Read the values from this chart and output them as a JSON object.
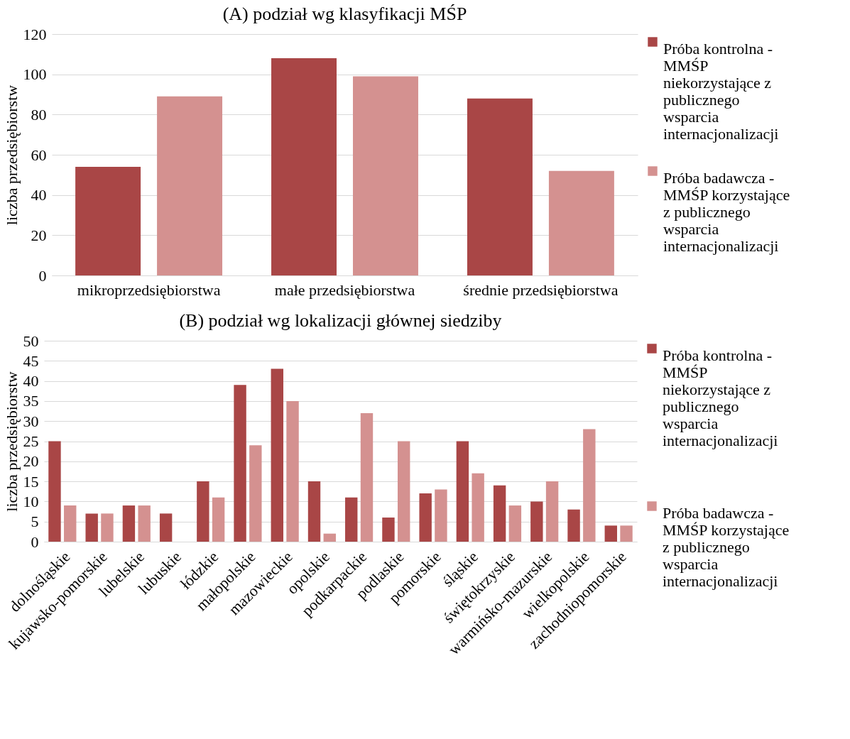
{
  "chart_data": [
    {
      "type": "bar",
      "title": "(A) podział wg klasyfikacji MŚP",
      "ylabel": "liczba przedsiębiorstw",
      "categories": [
        "mikroprzedsiębiorstwa",
        "małe przedsiębiorstwa",
        "średnie przedsiębiorstwa"
      ],
      "series": [
        {
          "name": "Próba kontrolna - MMŚP niekorzystające z publicznego wsparcia internacjonalizacji",
          "color": "#a94646",
          "values": [
            54,
            108,
            88
          ]
        },
        {
          "name": "Próba badawcza - MMŚP korzystające z publicznego wsparcia internacjonalizacji",
          "color": "#d49190",
          "values": [
            89,
            99,
            52
          ]
        }
      ],
      "ylim": [
        0,
        120
      ],
      "yticks": [
        0,
        20,
        40,
        60,
        80,
        100,
        120
      ],
      "grid": "y",
      "legend": "right"
    },
    {
      "type": "bar",
      "title": "(B) podział wg lokalizacji głównej siedziby",
      "ylabel": "liczba przedsiębiorstw",
      "categories": [
        "dolnośląskie",
        "kujawsko-pomorskie",
        "lubelskie",
        "lubuskie",
        "łódzkie",
        "małopolskie",
        "mazowieckie",
        "opolskie",
        "podkarpackie",
        "podlaskie",
        "pomorskie",
        "śląskie",
        "świętokrzyskie",
        "warmińsko-mazurskie",
        "wielkopolskie",
        "zachodniopomorskie"
      ],
      "series": [
        {
          "name": "Próba kontrolna - MMŚP niekorzystające z publicznego wsparcia internacjonalizacji",
          "color": "#a94646",
          "values": [
            25,
            7,
            9,
            7,
            15,
            39,
            43,
            15,
            11,
            6,
            12,
            25,
            14,
            10,
            8,
            4
          ]
        },
        {
          "name": "Próba badawcza - MMŚP korzystające z publicznego wsparcia internacjonalizacji",
          "color": "#d49190",
          "values": [
            9,
            7,
            9,
            0,
            11,
            24,
            35,
            2,
            32,
            25,
            13,
            17,
            9,
            15,
            28,
            4
          ]
        }
      ],
      "ylim": [
        0,
        50
      ],
      "yticks": [
        0,
        5,
        10,
        15,
        20,
        25,
        30,
        35,
        40,
        45,
        50
      ],
      "grid": "y",
      "legend": "right"
    }
  ]
}
